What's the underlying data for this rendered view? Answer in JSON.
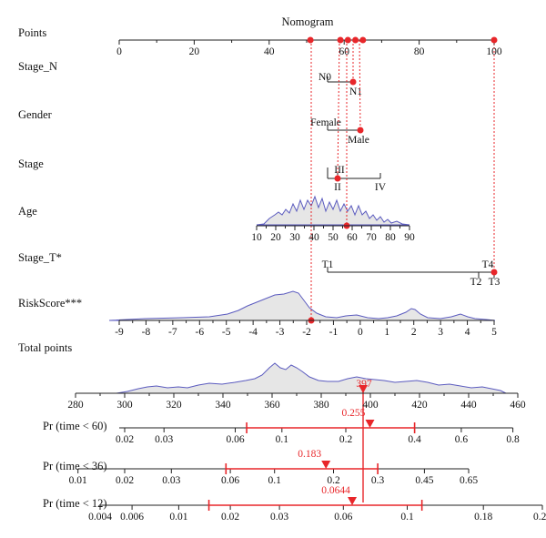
{
  "chart_data": {
    "type": "nomogram",
    "title": "Nomogram",
    "rows": {
      "points": {
        "label": "Points",
        "ticks": [
          0,
          20,
          40,
          60,
          80,
          100
        ]
      },
      "stage_n": {
        "label": "Stage_N",
        "levels": [
          "N0",
          "N1"
        ],
        "selected": "N1",
        "points": [
          60,
          62
        ]
      },
      "gender": {
        "label": "Gender",
        "levels": [
          "Female",
          "Male"
        ],
        "selected": "Male",
        "points": [
          55,
          64
        ]
      },
      "stage": {
        "label": "Stage",
        "levels": [
          "III",
          "II",
          "IV"
        ],
        "level_points": [
          56,
          58,
          70
        ],
        "selected": "II"
      },
      "age": {
        "label": "Age",
        "ticks": [
          10,
          20,
          30,
          40,
          50,
          60,
          70,
          80,
          90
        ],
        "selected_value": 58
      },
      "stage_t": {
        "label": "Stage_T*",
        "levels": [
          "T1",
          "T2",
          "T3",
          "T4"
        ],
        "level_points": [
          55,
          95,
          100,
          100
        ],
        "selected": "T3"
      },
      "riskscore": {
        "label": "RiskScore***",
        "ticks": [
          -9,
          -8,
          -7,
          -6,
          -5,
          -4,
          -3,
          -2,
          -1,
          0,
          1,
          2,
          3,
          4,
          5
        ],
        "selected_value": -1.8
      },
      "total": {
        "label": "Total points",
        "ticks": [
          280,
          300,
          320,
          340,
          360,
          380,
          400,
          420,
          440,
          460
        ],
        "value": 397,
        "value_label": "397"
      }
    },
    "point_markers": [
      51,
      59,
      61,
      63,
      65,
      100
    ],
    "probabilities": [
      {
        "label": "Pr (time < 60)",
        "ticks": [
          "0.02",
          "0.03",
          "0.06",
          "0.1",
          "0.2",
          "0.4",
          "0.6",
          "0.8"
        ],
        "estimate": 0.255,
        "estimate_label": "0.255",
        "ci": [
          0.068,
          0.4
        ]
      },
      {
        "label": "Pr (time < 36)",
        "ticks": [
          "0.01",
          "0.02",
          "0.03",
          "0.06",
          "0.1",
          "0.2",
          "0.3",
          "0.45",
          "0.65"
        ],
        "estimate": 0.183,
        "estimate_label": "0.183",
        "ci": [
          0.057,
          0.3
        ]
      },
      {
        "label": "Pr (time < 12)",
        "ticks": [
          "0.004",
          "0.006",
          "0.01",
          "0.02",
          "0.03",
          "0.06",
          "0.1",
          "0.18",
          "0.28"
        ],
        "estimate": 0.0644,
        "estimate_label": "0.0644",
        "ci": [
          0.015,
          0.112
        ]
      }
    ],
    "colors": {
      "accent": "#e8262a",
      "density_stroke": "#5b5bbf",
      "density_fill": "#e6e6e6"
    }
  }
}
